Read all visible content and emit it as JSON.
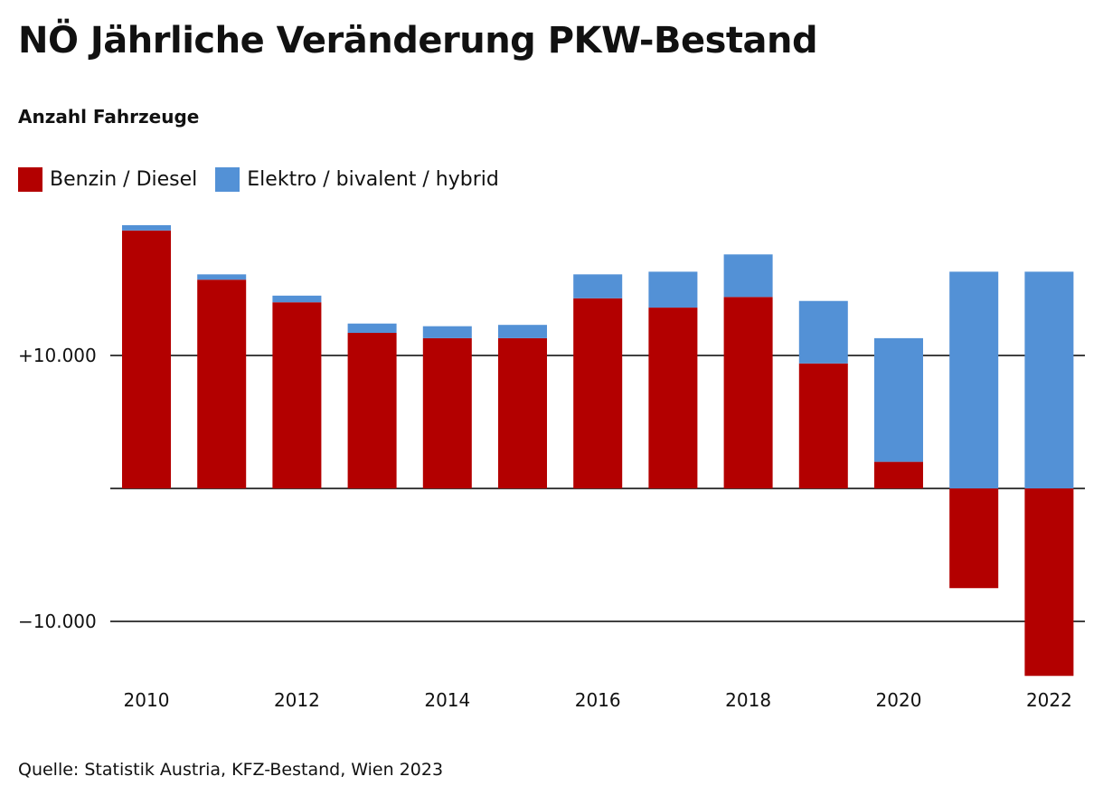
{
  "title": "NÖ Jährliche Veränderung PKW-Bestand",
  "subtitle": "Anzahl Fahrzeuge",
  "source": "Quelle: Statistik Austria, KFZ-Bestand, Wien 2023",
  "colors": {
    "benzin": "#b30000",
    "elektro": "#5391d6"
  },
  "legend": [
    {
      "label": "Benzin / Diesel",
      "color": "#b30000"
    },
    {
      "label": "Elektro / bivalent / hybrid",
      "color": "#5391d6"
    }
  ],
  "chart_data": {
    "type": "bar",
    "stacked": true,
    "categories": [
      "2010",
      "2011",
      "2012",
      "2013",
      "2014",
      "2015",
      "2016",
      "2017",
      "2018",
      "2019",
      "2020",
      "2021",
      "2022"
    ],
    "x_tick_labels": [
      "2010",
      "",
      "2012",
      "",
      "2014",
      "",
      "2016",
      "",
      "2018",
      "",
      "2020",
      "",
      "2022"
    ],
    "series": [
      {
        "name": "Benzin / Diesel",
        "color": "#b30000",
        "values": [
          19400,
          15700,
          14000,
          11700,
          11300,
          11300,
          14300,
          13600,
          14400,
          9400,
          2000,
          -7500,
          -14100
        ]
      },
      {
        "name": "Elektro / bivalent / hybrid",
        "color": "#5391d6",
        "values": [
          400,
          400,
          500,
          700,
          900,
          1000,
          1800,
          2700,
          3200,
          4700,
          9300,
          16300,
          16300
        ]
      }
    ],
    "y_ticks": [
      {
        "value": 10000,
        "label": "+10.000"
      },
      {
        "value": 0,
        "label": ""
      },
      {
        "value": -10000,
        "label": "−10.000"
      }
    ],
    "ylim": [
      -14100,
      19800
    ],
    "legend_position": "top-left"
  }
}
